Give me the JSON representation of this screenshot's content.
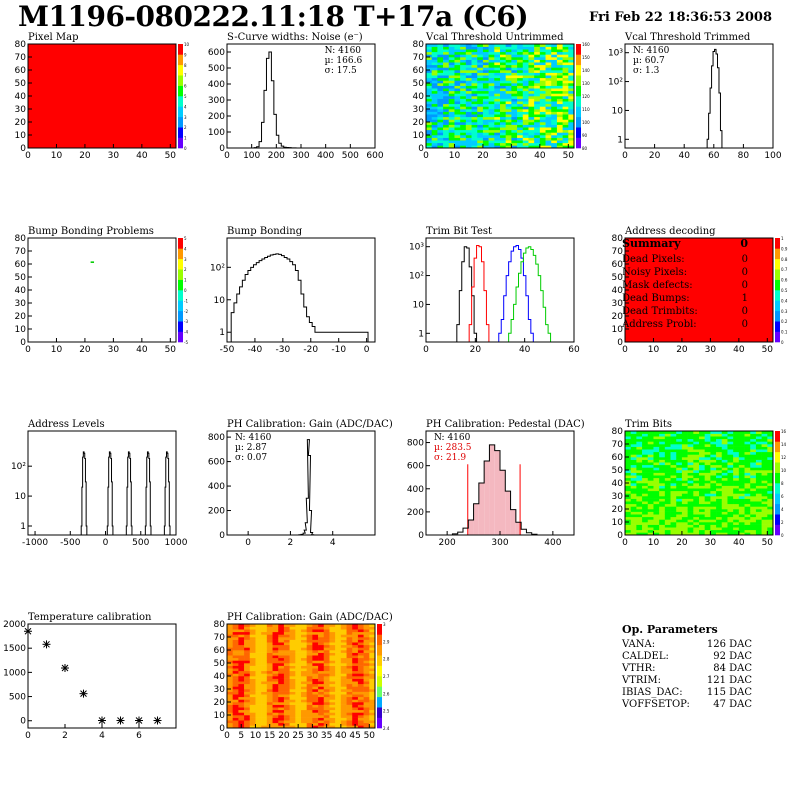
{
  "header": {
    "title": "M1196-080222.11:18 T+17a (C6)",
    "date": "Fri Feb 22 18:36:53 2008"
  },
  "colors": {
    "red": "#ff0000",
    "palette": [
      "#6600ff",
      "#0000ff",
      "#0099ff",
      "#00ccff",
      "#00ffcc",
      "#00ff00",
      "#99ff00",
      "#ffff00",
      "#ff9900",
      "#ff0000"
    ]
  },
  "chart_data": [
    {
      "id": "pixel_map",
      "type": "heatmap",
      "title": "Pixel Map",
      "xlim": [
        0,
        52
      ],
      "ylim": [
        0,
        80
      ],
      "xticks": [
        "0",
        "10",
        "20",
        "30",
        "40",
        "50"
      ],
      "yticks": [
        "0",
        "10",
        "20",
        "30",
        "40",
        "50",
        "60",
        "70",
        "80"
      ],
      "zlim": [
        0,
        10
      ],
      "zticks": [
        "0",
        "1",
        "2",
        "3",
        "4",
        "5",
        "6",
        "7",
        "8",
        "9",
        "10"
      ],
      "fill": "uniform 10"
    },
    {
      "id": "scurve",
      "type": "histogram",
      "title": "S-Curve widths: Noise (e⁻)",
      "xlim": [
        0,
        600
      ],
      "ylim": [
        0,
        650
      ],
      "xticks": [
        "0",
        "100",
        "200",
        "300",
        "400",
        "500",
        "600"
      ],
      "yticks": [
        "0",
        "100",
        "200",
        "300",
        "400",
        "500",
        "600"
      ],
      "stats": [
        "N: 4160",
        "µ: 166.6",
        "σ: 17.5"
      ],
      "x": [
        105,
        115,
        125,
        135,
        145,
        155,
        165,
        175,
        185,
        195,
        205,
        215,
        225,
        235,
        245,
        255,
        265,
        275,
        285
      ],
      "values": [
        0,
        2,
        8,
        40,
        160,
        360,
        560,
        600,
        420,
        210,
        80,
        30,
        12,
        5,
        3,
        2,
        1,
        1,
        0
      ]
    },
    {
      "id": "vcal_untrimmed",
      "type": "heatmap",
      "title": "Vcal Threshold Untrimmed",
      "xlim": [
        0,
        52
      ],
      "ylim": [
        0,
        80
      ],
      "xticks": [
        "0",
        "10",
        "20",
        "30",
        "40",
        "50"
      ],
      "yticks": [
        "0",
        "10",
        "20",
        "30",
        "40",
        "50",
        "60",
        "70",
        "80"
      ],
      "zlim": [
        80,
        160
      ],
      "zticks": [
        "80",
        "90",
        "100",
        "110",
        "120",
        "130",
        "140",
        "150",
        "160"
      ]
    },
    {
      "id": "vcal_trimmed",
      "type": "histogram",
      "log": true,
      "title": "Vcal Threshold Trimmed",
      "xlim": [
        0,
        100
      ],
      "ylim": [
        0.5,
        2000
      ],
      "xticks": [
        "0",
        "20",
        "40",
        "60",
        "80",
        "100"
      ],
      "yticks": [
        "1",
        "10",
        "10²",
        "10³"
      ],
      "stats": [
        "N: 4160",
        "µ: 60.7",
        "σ:  1.3"
      ],
      "x": [
        56,
        57,
        58,
        59,
        60,
        61,
        62,
        63,
        64,
        65
      ],
      "values": [
        1,
        8,
        60,
        350,
        1100,
        1300,
        900,
        300,
        40,
        2
      ]
    },
    {
      "id": "bump_problems",
      "type": "heatmap",
      "title": "Bump Bonding Problems",
      "xlim": [
        0,
        52
      ],
      "ylim": [
        0,
        80
      ],
      "xticks": [
        "0",
        "10",
        "20",
        "30",
        "40",
        "50"
      ],
      "yticks": [
        "0",
        "10",
        "20",
        "30",
        "40",
        "50",
        "60",
        "70",
        "80"
      ],
      "zlim": [
        -5,
        5
      ],
      "zticks": [
        "-5",
        "-4",
        "-3",
        "-2",
        "-1",
        "0",
        "1",
        "2",
        "3",
        "4",
        "5"
      ],
      "points": [
        [
          22,
          61
        ]
      ]
    },
    {
      "id": "bump_bonding",
      "type": "histogram",
      "log": true,
      "title": "Bump Bonding",
      "xlim": [
        -50,
        3
      ],
      "ylim": [
        0.5,
        800
      ],
      "xticks": [
        "-50",
        "-40",
        "-30",
        "-20",
        "-10",
        "0"
      ],
      "yticks": [
        "1",
        "10",
        "10²"
      ],
      "x": [
        -48,
        -47,
        -46,
        -45,
        -44,
        -43,
        -42,
        -41,
        -40,
        -39,
        -38,
        -37,
        -36,
        -35,
        -34,
        -33,
        -32,
        -31,
        -30,
        -29,
        -28,
        -27,
        -26,
        -25,
        -24,
        -23,
        -22,
        -21,
        -20,
        -19,
        -18,
        -16,
        0
      ],
      "values": [
        4,
        8,
        15,
        25,
        40,
        60,
        80,
        100,
        120,
        140,
        160,
        180,
        200,
        220,
        240,
        250,
        260,
        250,
        230,
        200,
        180,
        150,
        120,
        80,
        40,
        15,
        6,
        3,
        2,
        1.5,
        1,
        1,
        1
      ]
    },
    {
      "id": "trim_bit_test",
      "type": "histogram",
      "log": true,
      "title": "Trim Bit Test",
      "xlim": [
        0,
        60
      ],
      "ylim": [
        0.5,
        2000
      ],
      "xticks": [
        "0",
        "20",
        "40",
        "60"
      ],
      "yticks": [
        "1",
        "10",
        "10²",
        "10³"
      ],
      "series": [
        {
          "name": "",
          "color": "#000000",
          "x": [
            13,
            14,
            15,
            16,
            17,
            18,
            19,
            20
          ],
          "values": [
            2,
            30,
            300,
            1000,
            900,
            200,
            20,
            1
          ]
        },
        {
          "name": "",
          "color": "#ff0000",
          "x": [
            18,
            19,
            20,
            21,
            22,
            23,
            24,
            25
          ],
          "values": [
            2,
            40,
            400,
            1100,
            1000,
            300,
            30,
            2
          ]
        },
        {
          "name": "",
          "color": "#0000ff",
          "x": [
            30,
            31,
            32,
            33,
            34,
            35,
            36,
            37,
            38,
            39,
            40,
            41,
            42,
            43
          ],
          "values": [
            1,
            3,
            20,
            100,
            300,
            700,
            1000,
            1100,
            800,
            400,
            100,
            20,
            3,
            1
          ]
        },
        {
          "name": "",
          "color": "#00cc00",
          "x": [
            34,
            35,
            36,
            37,
            38,
            39,
            40,
            41,
            42,
            43,
            44,
            45,
            46,
            47,
            48,
            49,
            50
          ],
          "values": [
            1,
            3,
            10,
            40,
            120,
            300,
            600,
            900,
            1000,
            800,
            500,
            250,
            100,
            30,
            8,
            2,
            1
          ]
        }
      ]
    },
    {
      "id": "address_decoding",
      "type": "heatmap",
      "title": "Address decoding",
      "xlim": [
        0,
        52
      ],
      "ylim": [
        0,
        80
      ],
      "xticks": [
        "0",
        "10",
        "20",
        "30",
        "40",
        "50"
      ],
      "yticks": [
        "0",
        "10",
        "20",
        "30",
        "40",
        "50",
        "60",
        "70",
        "80"
      ],
      "zlim": [
        0,
        1
      ],
      "zticks": [
        "0",
        "0.1",
        "0.2",
        "0.3",
        "0.4",
        "0.5",
        "0.6",
        "0.7",
        "0.8",
        "0.9",
        "1"
      ],
      "fill": "uniform 1"
    },
    {
      "id": "address_levels",
      "type": "histogram",
      "log": true,
      "title": "Address Levels",
      "xlim": [
        -1100,
        1000
      ],
      "ylim": [
        0.5,
        1500
      ],
      "xticks": [
        "-1000",
        "-500",
        "0",
        "500",
        "1000"
      ],
      "yticks": [
        "1",
        "10",
        "10²"
      ],
      "peaks": [
        -300,
        70,
        340,
        610,
        880
      ],
      "peak_height": 300
    },
    {
      "id": "ph_gain",
      "type": "histogram",
      "title": "PH Calibration: Gain (ADC/DAC)",
      "xlim": [
        -1,
        6
      ],
      "ylim": [
        0,
        850
      ],
      "xticks": [
        "0",
        "2",
        "4"
      ],
      "yticks": [
        "0",
        "200",
        "400",
        "600",
        "800"
      ],
      "stats": [
        "N: 4160",
        "µ: 2.87",
        "σ: 0.07"
      ],
      "x": [
        2.45,
        2.55,
        2.65,
        2.7,
        2.75,
        2.8,
        2.85,
        2.9,
        2.95,
        3.0,
        3.05
      ],
      "values": [
        2,
        5,
        15,
        40,
        100,
        300,
        780,
        650,
        200,
        20,
        2
      ]
    },
    {
      "id": "ph_pedestal",
      "type": "histogram",
      "title": "PH Calibration: Pedestal (DAC)",
      "xlim": [
        160,
        440
      ],
      "ylim": [
        0,
        900
      ],
      "xticks": [
        "200",
        "300",
        "400"
      ],
      "yticks": [
        "0",
        "200",
        "400",
        "600",
        "800"
      ],
      "stats": [
        "N: 4160"
      ],
      "stats_red": [
        "µ: 283.5",
        "σ: 21.9"
      ],
      "x": [
        215,
        225,
        235,
        245,
        255,
        265,
        275,
        285,
        295,
        305,
        315,
        325,
        335,
        345,
        355,
        365
      ],
      "values": [
        10,
        25,
        60,
        130,
        270,
        450,
        640,
        780,
        730,
        560,
        380,
        220,
        110,
        50,
        20,
        6
      ],
      "cut_lines": [
        239,
        338
      ]
    },
    {
      "id": "trim_bits",
      "type": "heatmap",
      "title": "Trim Bits",
      "xlim": [
        0,
        52
      ],
      "ylim": [
        0,
        80
      ],
      "xticks": [
        "0",
        "10",
        "20",
        "30",
        "40",
        "50"
      ],
      "yticks": [
        "0",
        "10",
        "20",
        "30",
        "40",
        "50",
        "60",
        "70",
        "80"
      ],
      "zlim": [
        0,
        16
      ],
      "zticks": [
        "0",
        "2",
        "4",
        "6",
        "8",
        "10",
        "12",
        "14",
        "16"
      ]
    },
    {
      "id": "temperature",
      "type": "scatter",
      "title": "Temperature calibration",
      "xlim": [
        0,
        8
      ],
      "ylim": [
        -150,
        2000
      ],
      "xticks": [
        "0",
        "2",
        "4",
        "6"
      ],
      "yticks": [
        "0",
        "500",
        "1000",
        "1500",
        "2000"
      ],
      "x": [
        0,
        1,
        2,
        3,
        4,
        5,
        6,
        7
      ],
      "values": [
        1850,
        1580,
        1090,
        560,
        5,
        5,
        5,
        5
      ]
    },
    {
      "id": "ph_gain_map",
      "type": "heatmap",
      "title": "PH Calibration: Gain (ADC/DAC)",
      "xlim": [
        0,
        52
      ],
      "ylim": [
        0,
        80
      ],
      "xticks": [
        "0",
        "5",
        "10",
        "15",
        "20",
        "25",
        "30",
        "35",
        "40",
        "45",
        "50"
      ],
      "yticks": [
        "0",
        "10",
        "20",
        "30",
        "40",
        "50",
        "60",
        "70",
        "80"
      ],
      "zlim": [
        2.4,
        3
      ],
      "zticks": [
        "2.4",
        "2.5",
        "2.6",
        "2.7",
        "2.8",
        "2.9",
        "3"
      ]
    }
  ],
  "summary": {
    "title": "Summary",
    "value": "0",
    "rows": [
      {
        "label": "Dead Pixels:",
        "value": "0"
      },
      {
        "label": "Noisy Pixels:",
        "value": "0"
      },
      {
        "label": "Mask defects:",
        "value": "0"
      },
      {
        "label": "Dead Bumps:",
        "value": "1"
      },
      {
        "label": "Dead Trimbits:",
        "value": "0"
      },
      {
        "label": "Address Probl:",
        "value": "0"
      }
    ]
  },
  "op_params": {
    "title": "Op. Parameters",
    "rows": [
      {
        "label": "VANA:",
        "value": "126 DAC"
      },
      {
        "label": "CALDEL:",
        "value": "92 DAC"
      },
      {
        "label": "VTHR:",
        "value": "84 DAC"
      },
      {
        "label": "VTRIM:",
        "value": "121 DAC"
      },
      {
        "label": "IBIAS_DAC:",
        "value": "115 DAC"
      },
      {
        "label": "VOFFSETOP:",
        "value": "47 DAC"
      }
    ]
  }
}
